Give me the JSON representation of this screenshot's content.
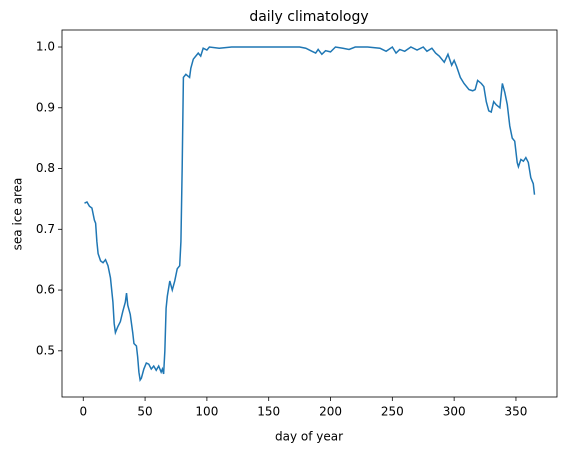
{
  "chart_data": {
    "type": "line",
    "title": "daily climatology",
    "x_label": "day of year",
    "y_label": "sea ice area",
    "x": [
      1,
      3,
      5,
      7,
      9,
      10,
      11,
      12,
      14,
      16,
      18,
      20,
      22,
      24,
      25,
      26,
      28,
      30,
      32,
      34,
      35,
      36,
      38,
      40,
      41,
      43,
      44,
      45,
      46,
      47,
      49,
      51,
      53,
      55,
      57,
      59,
      61,
      63,
      64,
      65,
      66,
      67,
      68,
      70,
      72,
      74,
      76,
      78,
      79,
      80,
      81,
      83,
      86,
      87,
      89,
      91,
      93,
      95,
      97,
      100,
      102,
      110,
      120,
      130,
      140,
      150,
      160,
      170,
      175,
      180,
      185,
      188,
      190,
      193,
      196,
      200,
      204,
      210,
      215,
      220,
      230,
      240,
      245,
      250,
      253,
      256,
      260,
      265,
      270,
      275,
      278,
      282,
      285,
      288,
      292,
      295,
      298,
      300,
      302,
      305,
      308,
      312,
      315,
      317,
      319,
      322,
      324,
      326,
      328,
      330,
      332,
      334,
      337,
      339,
      341,
      343,
      345,
      347,
      349,
      351,
      352,
      354,
      356,
      358,
      360,
      362,
      364,
      365
    ],
    "series": [
      {
        "name": "sea ice area",
        "color": "#1f77b4",
        "values": [
          0.743,
          0.745,
          0.738,
          0.735,
          0.715,
          0.71,
          0.68,
          0.66,
          0.648,
          0.645,
          0.65,
          0.64,
          0.62,
          0.58,
          0.545,
          0.53,
          0.54,
          0.548,
          0.565,
          0.58,
          0.595,
          0.575,
          0.56,
          0.53,
          0.512,
          0.508,
          0.49,
          0.465,
          0.452,
          0.455,
          0.47,
          0.48,
          0.478,
          0.47,
          0.475,
          0.468,
          0.475,
          0.465,
          0.47,
          0.462,
          0.5,
          0.57,
          0.59,
          0.615,
          0.6,
          0.615,
          0.635,
          0.64,
          0.68,
          0.8,
          0.95,
          0.955,
          0.95,
          0.965,
          0.98,
          0.985,
          0.99,
          0.985,
          0.998,
          0.995,
          1.0,
          0.998,
          1.0,
          1.0,
          1.0,
          1.0,
          1.0,
          1.0,
          1.0,
          0.998,
          0.993,
          0.99,
          0.996,
          0.988,
          0.994,
          0.992,
          1.0,
          0.998,
          0.996,
          1.0,
          1.0,
          0.998,
          0.993,
          1.0,
          0.99,
          0.996,
          0.993,
          1.0,
          0.995,
          1.0,
          0.993,
          0.998,
          0.99,
          0.985,
          0.975,
          0.988,
          0.97,
          0.978,
          0.968,
          0.95,
          0.94,
          0.93,
          0.928,
          0.93,
          0.945,
          0.94,
          0.935,
          0.91,
          0.895,
          0.893,
          0.91,
          0.905,
          0.9,
          0.94,
          0.925,
          0.905,
          0.87,
          0.85,
          0.845,
          0.81,
          0.803,
          0.815,
          0.812,
          0.818,
          0.81,
          0.785,
          0.775,
          0.757
        ]
      }
    ],
    "xlim": [
      -17.2,
      383.2
    ],
    "ylim": [
      0.424,
      1.028
    ],
    "xticks": [
      0,
      50,
      100,
      150,
      200,
      250,
      300,
      350
    ],
    "yticks": [
      0.5,
      0.6,
      0.7,
      0.8,
      0.9,
      {
        "value": 1,
        "label": "1.0"
      }
    ]
  }
}
